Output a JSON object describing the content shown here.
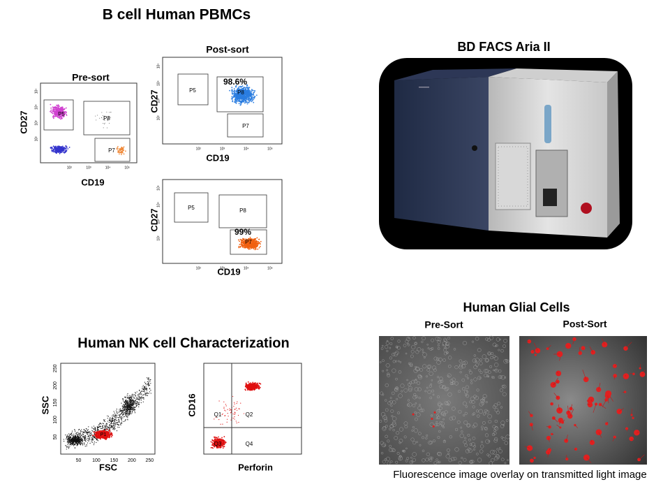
{
  "bcell": {
    "title": "B cell Human PBMCs",
    "ticks": [
      "10²",
      "10³",
      "10⁴",
      "10⁵"
    ],
    "presort": {
      "title": "Pre-sort",
      "xlabel": "CD19",
      "ylabel": "CD27",
      "gates": [
        "P5",
        "P8",
        "P7"
      ]
    },
    "postsort_p8": {
      "title": "Post-sort",
      "xlabel": "CD19",
      "ylabel": "CD27",
      "gates": [
        "P5",
        "P8",
        "P7"
      ],
      "percent": "98.6%"
    },
    "postsort_p7": {
      "xlabel": "CD19",
      "ylabel": "CD27",
      "gates": [
        "P5",
        "P8",
        "P7"
      ],
      "percent": "99%"
    }
  },
  "machine": {
    "title": "BD FACS Aria II"
  },
  "nk": {
    "title": "Human NK cell Characterization",
    "scatter": {
      "xlabel": "FSC",
      "ylabel": "SSC",
      "gate": "P1",
      "xticks": [
        "50",
        "100",
        "150",
        "200",
        "250"
      ],
      "yticks": [
        "50",
        "100",
        "150",
        "200",
        "250"
      ]
    },
    "quad": {
      "xlabel": "Perforin",
      "ylabel": "CD16",
      "quadrants": [
        "Q1",
        "Q2",
        "Q3",
        "Q4"
      ]
    }
  },
  "glial": {
    "title": "Human Glial Cells",
    "images": [
      "Pre-Sort",
      "Post-Sort"
    ],
    "caption": "Fluorescence image overlay on transmitted light image"
  }
}
